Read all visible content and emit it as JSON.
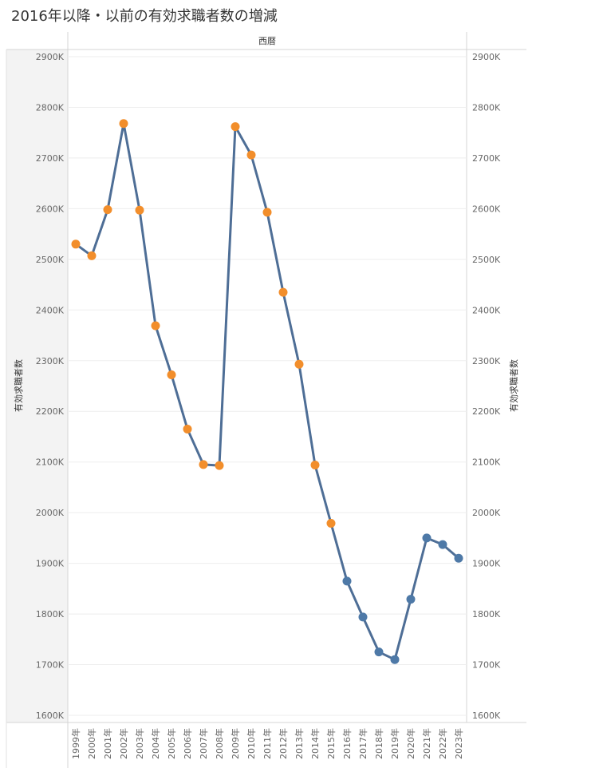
{
  "title": "2016年以降・以前の有効求職者数の増減",
  "chart_data": {
    "type": "line",
    "title": "2016年以降・以前の有効求職者数の増減",
    "header_label": "西暦",
    "ylabel": "有効求職者数",
    "ylabel_right": "有効求職者数",
    "ylim": [
      1600,
      2900
    ],
    "y_ticks": [
      {
        "value": 1600,
        "label": "1600K"
      },
      {
        "value": 1700,
        "label": "1700K"
      },
      {
        "value": 1800,
        "label": "1800K"
      },
      {
        "value": 1900,
        "label": "1900K"
      },
      {
        "value": 2000,
        "label": "2000K"
      },
      {
        "value": 2100,
        "label": "2100K"
      },
      {
        "value": 2200,
        "label": "2200K"
      },
      {
        "value": 2300,
        "label": "2300K"
      },
      {
        "value": 2400,
        "label": "2400K"
      },
      {
        "value": 2500,
        "label": "2500K"
      },
      {
        "value": 2600,
        "label": "2600K"
      },
      {
        "value": 2700,
        "label": "2700K"
      },
      {
        "value": 2800,
        "label": "2800K"
      },
      {
        "value": 2900,
        "label": "2900K"
      }
    ],
    "categories": [
      "1999年",
      "2000年",
      "2001年",
      "2002年",
      "2003年",
      "2004年",
      "2005年",
      "2006年",
      "2007年",
      "2008年",
      "2009年",
      "2010年",
      "2011年",
      "2012年",
      "2013年",
      "2014年",
      "2015年",
      "2016年",
      "2017年",
      "2018年",
      "2019年",
      "2020年",
      "2021年",
      "2022年",
      "2023年"
    ],
    "values": [
      2530,
      2507,
      2598,
      2768,
      2597,
      2369,
      2272,
      2165,
      2095,
      2093,
      2762,
      2706,
      2593,
      2435,
      2293,
      2094,
      1979,
      1865,
      1794,
      1725,
      1710,
      1829,
      1950,
      1937,
      1910
    ],
    "point_colors": [
      "#f28e2b",
      "#f28e2b",
      "#f28e2b",
      "#f28e2b",
      "#f28e2b",
      "#f28e2b",
      "#f28e2b",
      "#f28e2b",
      "#f28e2b",
      "#f28e2b",
      "#f28e2b",
      "#f28e2b",
      "#f28e2b",
      "#f28e2b",
      "#f28e2b",
      "#f28e2b",
      "#f28e2b",
      "#4e79a7",
      "#4e79a7",
      "#4e79a7",
      "#4e79a7",
      "#4e79a7",
      "#4e79a7",
      "#4e79a7",
      "#4e79a7"
    ],
    "line_color": "#4e6e96",
    "grid": true,
    "legend": "none"
  }
}
